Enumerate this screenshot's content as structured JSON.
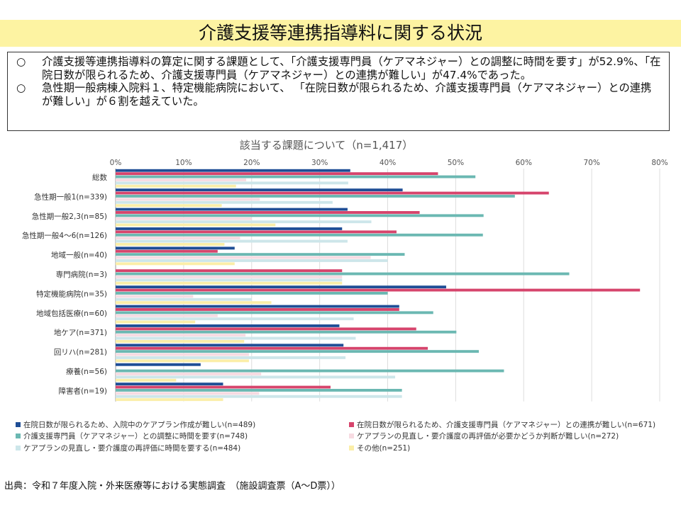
{
  "header": {
    "title": "介護支援等連携指導料に関する状況"
  },
  "summary": {
    "bullets": [
      {
        "mark": "○",
        "text": "介護支援等連携指導料の算定に関する課題として、「介護支援専門員（ケアマネジャー）との調整に時間を要す」が52.9%、「在院日数が限られるため、介護支援専門員（ケアマネジャー）との連携が難しい」が47.4%であった。"
      },
      {
        "mark": "○",
        "text": "急性期一般病棟入院料１、特定機能病院において、 「在院日数が限られるため、介護支援専門員（ケアマネジャー）との連携が難しい」が６割を越えていた。"
      }
    ]
  },
  "chart_data": {
    "type": "bar",
    "orientation": "horizontal",
    "title": "該当する課題について（n=1,417）",
    "xlim": [
      0,
      80
    ],
    "x_ticks": [
      "0%",
      "10%",
      "20%",
      "30%",
      "40%",
      "50%",
      "60%",
      "70%",
      "80%"
    ],
    "grid": true,
    "legend_position": "bottom",
    "categories": [
      "総数",
      "急性期一般1(n=339)",
      "急性期一般2,3(n=85)",
      "急性期一般4～6(n=126)",
      "地域一般(n=40)",
      "専門病院(n=3)",
      "特定機能病院(n=35)",
      "地域包括医療(n=60)",
      "地ケア(n=371)",
      "回リハ(n=281)",
      "療養(n=56)",
      "障害者(n=19)"
    ],
    "series": [
      {
        "name": "在院日数が限られるため、入院中のケアプラン作成が難しい(n=489)",
        "color": "#1f4e96",
        "values": [
          34.5,
          42.2,
          34.1,
          33.3,
          17.5,
          0,
          48.6,
          41.7,
          32.9,
          33.5,
          12.5,
          15.8
        ]
      },
      {
        "name": "在院日数が限られるため、介護支援専門員（ケアマネジャー）との連携が難しい(n=671)",
        "color": "#d6446c",
        "values": [
          47.4,
          63.7,
          44.7,
          41.3,
          15.0,
          33.3,
          77.1,
          41.7,
          44.2,
          45.9,
          0,
          31.6
        ]
      },
      {
        "name": "介護支援専門員（ケアマネジャー）との調整に時間を要す(n=748)",
        "color": "#6bb8b2",
        "values": [
          52.9,
          58.7,
          54.1,
          54.0,
          42.5,
          66.7,
          40.0,
          46.7,
          50.1,
          53.4,
          57.1,
          42.1
        ]
      },
      {
        "name": "ケアプランの見直し・要介護度の再評価が必要かどうか判断が難しい(n=272)",
        "color": "#f7dbe2",
        "values": [
          19.2,
          21.2,
          20.0,
          18.3,
          37.5,
          33.3,
          11.4,
          15.0,
          19.1,
          19.6,
          21.4,
          21.1
        ]
      },
      {
        "name": "ケアプランの見直し・要介護度の再評価に時間を要する(n=484)",
        "color": "#cde6ea",
        "values": [
          34.2,
          31.9,
          37.6,
          34.1,
          40.0,
          33.3,
          20.0,
          35.0,
          35.3,
          33.8,
          41.1,
          42.1
        ]
      },
      {
        "name": "その他(n=251)",
        "color": "#fbeea8",
        "values": [
          17.7,
          15.6,
          23.5,
          16.0,
          17.5,
          33.3,
          22.9,
          11.7,
          18.9,
          19.6,
          8.9,
          15.8
        ]
      }
    ]
  },
  "footer": {
    "source": "出典：令和７年度入院・外来医療等における実態調査　（施設調査票（A～D票））"
  }
}
